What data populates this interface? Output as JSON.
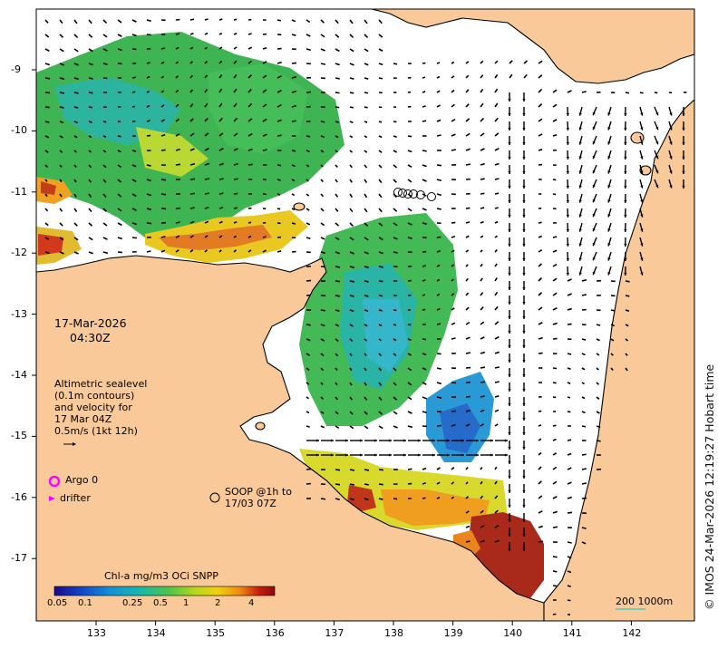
{
  "map": {
    "date": "17-Mar-2026",
    "time": "04:30Z",
    "x_ticks": [
      "133",
      "134",
      "135",
      "136",
      "137",
      "138",
      "139",
      "140",
      "141",
      "142"
    ],
    "y_ticks": [
      "9",
      "10",
      "11",
      "12",
      "13",
      "14",
      "15",
      "16",
      "17"
    ],
    "y_tick_prefix": "-",
    "colors": {
      "land": "#f9c99a",
      "ocean": "#ffffff",
      "arrow": "#000000",
      "argo": "#ff00ff",
      "drifter": "#ff00ff"
    }
  },
  "altimetry": {
    "line1": "Altimetric sealevel",
    "line2": "(0.1m contours)",
    "line3": "and velocity for",
    "line4": "17 Mar 04Z",
    "line5": "0.5m/s (1kt 12h)"
  },
  "legend": {
    "argo": "Argo 0",
    "drifter": "drifter",
    "soop_line1": "SOOP @1h to",
    "soop_line2": "17/03 07Z"
  },
  "colorbar": {
    "title": "Chl-a mg/m3 OCi SNPP",
    "ticks": [
      "0.05",
      "0.1",
      "0.25",
      "0.5",
      "1",
      "2",
      "4"
    ]
  },
  "scale": {
    "label": "200  1000m"
  },
  "credit": "© IMOS 24-Mar-2026 12:19:27 Hobart time"
}
